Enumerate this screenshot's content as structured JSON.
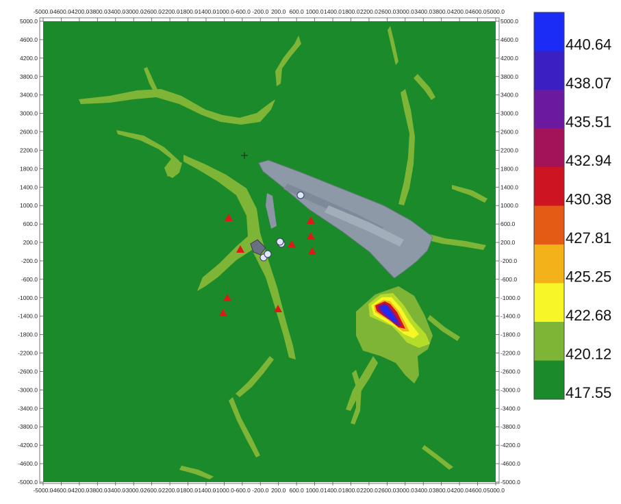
{
  "map": {
    "x_ticks": [
      "-5000.0",
      "-4600.0",
      "-4200.0",
      "-3800.0",
      "-3400.0",
      "-3000.0",
      "-2600.0",
      "-2200.0",
      "-1800.0",
      "-1400.0",
      "-1000.0",
      "-600.0",
      "-200.0",
      "200.0",
      "600.0",
      "1000.0",
      "1400.0",
      "1800.0",
      "2200.0",
      "2600.0",
      "3000.0",
      "3400.0",
      "3800.0",
      "4200.0",
      "4600.0",
      "5000.0"
    ],
    "y_ticks": [
      "5000.0",
      "4600.0",
      "4200.0",
      "3800.0",
      "3400.0",
      "3000.0",
      "2600.0",
      "2200.0",
      "1800.0",
      "1400.0",
      "1000.0",
      "600.0",
      "200.0",
      "-200.0",
      "-600.0",
      "-1000.0",
      "-1400.0",
      "-1800.0",
      "-2200.0",
      "-2600.0",
      "-3000.0",
      "-3400.0",
      "-3800.0",
      "-4200.0",
      "-4600.0",
      "-5000.0"
    ],
    "extent": {
      "xmin": -5000,
      "xmax": 5000,
      "ymin": -5000,
      "ymax": 5000
    },
    "colors": {
      "background": "#1b8a2a",
      "level1": "#7fb536",
      "level2": "#b6dc2a",
      "level3": "#f7f728",
      "level4": "#f3b21a",
      "level5": "#e35b14",
      "level6": "#cc1422",
      "level7": "#a3135a",
      "level8": "#6b1aa0",
      "level9": "#3b1fc2",
      "level10": "#1a2cf5",
      "receptor_marker": "#e01818",
      "source_marker": "#dfe6ff",
      "photo_overlay": "#8e99a8"
    }
  },
  "legend": {
    "colors": [
      "#1a2cf5",
      "#3b1fc2",
      "#6b1aa0",
      "#a3135a",
      "#cc1422",
      "#e35b14",
      "#f3b21a",
      "#f7f728",
      "#7fb536",
      "#1b8a2a"
    ],
    "labels": [
      "440.64",
      "438.07",
      "435.51",
      "432.94",
      "430.38",
      "427.81",
      "425.25",
      "422.68",
      "420.12",
      "417.55"
    ]
  }
}
